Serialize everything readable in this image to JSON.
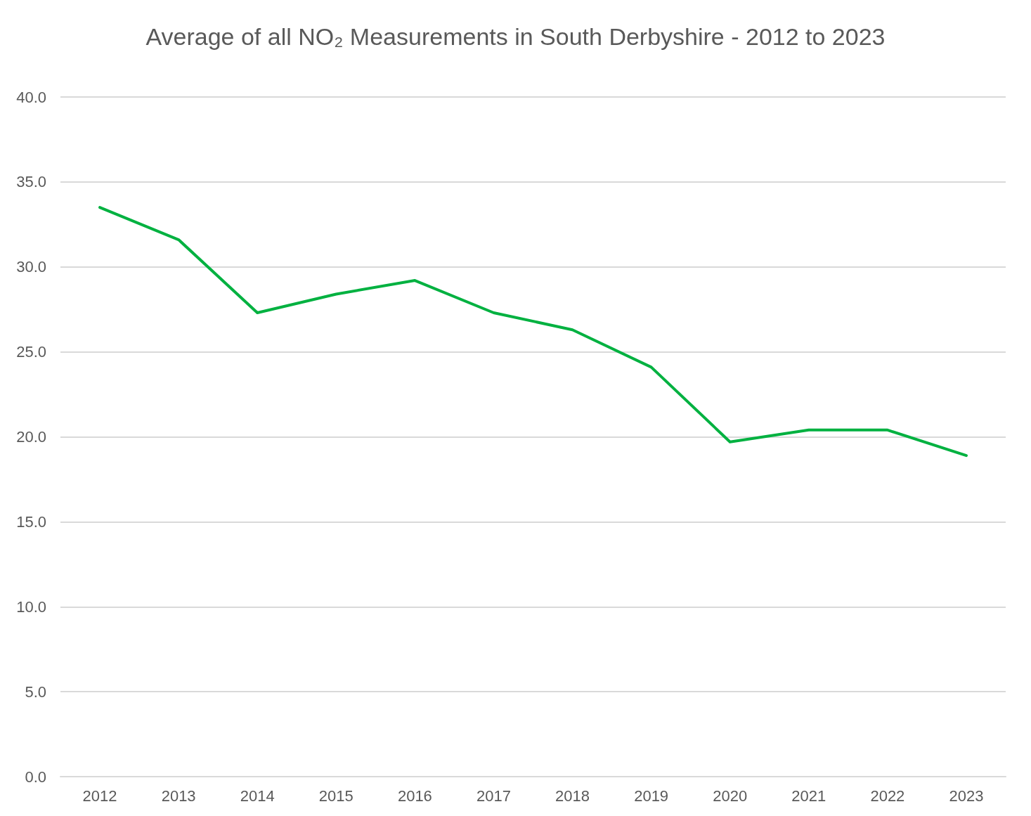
{
  "chart_data": {
    "type": "line",
    "title": "Average of all NO₂ Measurements in South Derbyshire - 2012 to 2023",
    "categories": [
      "2012",
      "2013",
      "2014",
      "2015",
      "2016",
      "2017",
      "2018",
      "2019",
      "2020",
      "2021",
      "2022",
      "2023"
    ],
    "series": [
      {
        "color": "#00b140",
        "values": [
          33.5,
          31.6,
          27.3,
          28.4,
          29.2,
          27.3,
          26.3,
          24.1,
          19.7,
          20.4,
          20.4,
          18.9
        ]
      }
    ],
    "ylim": [
      0,
      40
    ],
    "yticks": [
      {
        "value": 0,
        "label": "0.0"
      },
      {
        "value": 5,
        "label": "5.0"
      },
      {
        "value": 10,
        "label": "10.0"
      },
      {
        "value": 15,
        "label": "15.0"
      },
      {
        "value": 20,
        "label": "20.0"
      },
      {
        "value": 25,
        "label": "25.0"
      },
      {
        "value": 30,
        "label": "30.0"
      },
      {
        "value": 35,
        "label": "35.0"
      },
      {
        "value": 40,
        "label": "40.0"
      }
    ],
    "grid": "y",
    "marker": "none",
    "line_style": "solid"
  }
}
